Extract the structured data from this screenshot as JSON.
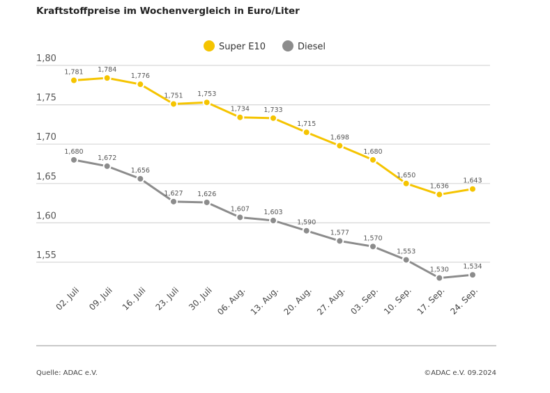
{
  "chart_data": {
    "type": "line",
    "title": "Kraftstoffpreise im Wochenvergleich in Euro/Liter",
    "categories": [
      "02. Juli",
      "09. Juli",
      "16. Juli",
      "23. Juli",
      "30. Juli",
      "06. Aug.",
      "13. Aug.",
      "20. Aug.",
      "27. Aug.",
      "03. Sep.",
      "10. Sep.",
      "17. Sep.",
      "24. Sep."
    ],
    "series": [
      {
        "name": "Super E10",
        "color": "#f5c400",
        "values": [
          1.781,
          1.784,
          1.776,
          1.751,
          1.753,
          1.734,
          1.733,
          1.715,
          1.698,
          1.68,
          1.65,
          1.636,
          1.643
        ],
        "labels": [
          "1,781",
          "1,784",
          "1,776",
          "1,751",
          "1,753",
          "1,734",
          "1,733",
          "1,715",
          "1,698",
          "1,680",
          "1,650",
          "1,636",
          "1,643"
        ]
      },
      {
        "name": "Diesel",
        "color": "#8c8c8c",
        "values": [
          1.68,
          1.672,
          1.656,
          1.627,
          1.626,
          1.607,
          1.603,
          1.59,
          1.577,
          1.57,
          1.553,
          1.53,
          1.534
        ],
        "labels": [
          "1,680",
          "1,672",
          "1,656",
          "1,627",
          "1,626",
          "1,607",
          "1,603",
          "1,590",
          "1,577",
          "1,570",
          "1,553",
          "1,530",
          "1,534"
        ]
      }
    ],
    "yticks": [
      1.8,
      1.75,
      1.7,
      1.65,
      1.6,
      1.55
    ],
    "ytick_labels": [
      "1,80",
      "1,75",
      "1,70",
      "1,65",
      "1,60",
      "1,55"
    ],
    "ylim": [
      1.55,
      1.8
    ],
    "grid": true,
    "legend_position": "top-center",
    "xlabel": "",
    "ylabel": ""
  },
  "footer": {
    "source": "Quelle: ADAC e.V.",
    "copyright": "©ADAC e.V. 09.2024"
  }
}
